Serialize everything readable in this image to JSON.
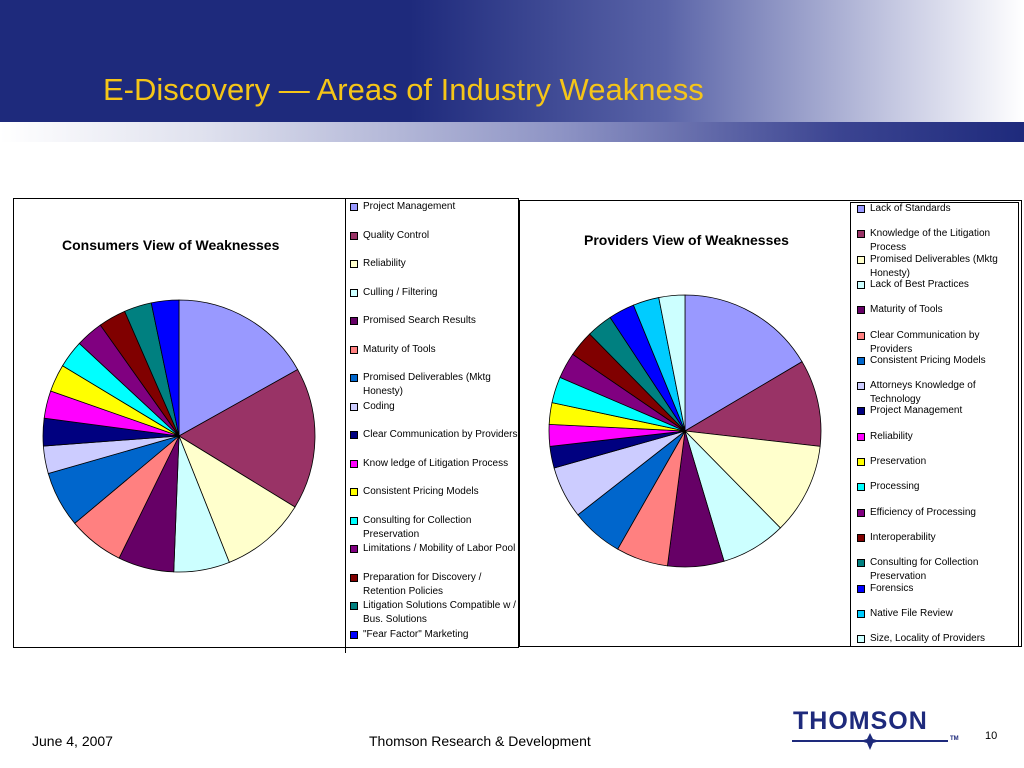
{
  "slide": {
    "title": "E-Discovery — Areas of Industry Weakness",
    "date": "June 4, 2007",
    "footer_center": "Thomson Research & Development",
    "page_number": "10",
    "logo_text": "THOMSON",
    "logo_tm": "TM"
  },
  "colors": {
    "title": "#f5c518",
    "header": "#1e2a7c"
  },
  "chart_data": [
    {
      "type": "pie",
      "title": "Consumers View of Weaknesses",
      "legend_position": "right",
      "start_angle": "12 o'clock, clockwise",
      "categories": [
        "Project Management",
        "Quality Control",
        "Reliability",
        "Culling / Filtering",
        "Promised Search Results",
        "Maturity of Tools",
        "Promised Deliverables (Mktg Honesty)",
        "Coding",
        "Clear Communication by Providers",
        "Know ledge of Litigation Process",
        "Consistent Pricing Models",
        "Consulting for Collection Preservation",
        "Limitations / Mobility of Labor Pool",
        "Preparation for Discovery / Retention Policies",
        "Litigation Solutions Compatible w / Bus. Solutions",
        "\"Fear Factor\" Marketing"
      ],
      "values": [
        16.5,
        16.5,
        10,
        6.5,
        6.5,
        6.5,
        6.5,
        3.2,
        3.2,
        3.2,
        3.2,
        3.2,
        3.2,
        3.2,
        3.2,
        3.2
      ],
      "colors": [
        "#9999ff",
        "#993366",
        "#ffffcc",
        "#ccffff",
        "#660066",
        "#ff8080",
        "#0066cc",
        "#ccccff",
        "#000080",
        "#ff00ff",
        "#ffff00",
        "#00ffff",
        "#800080",
        "#800000",
        "#008080",
        "#0000ff"
      ]
    },
    {
      "type": "pie",
      "title": "Providers View of Weaknesses",
      "legend_position": "right",
      "start_angle": "12 o'clock, clockwise",
      "categories": [
        "Lack of Standards",
        "Knowledge of the Litigation Process",
        "Promised Deliverables (Mktg Honesty)",
        "Lack of Best Practices",
        "Maturity of Tools",
        "Clear Communication by Providers",
        "Consistent Pricing Models",
        "Attorneys Knowledge of Technology",
        "Project Management",
        "Reliability",
        "Preservation",
        "Processing",
        "Efficiency of Processing",
        "Interoperability",
        "Consulting for Collection Preservation",
        "Forensics",
        "Native File Review",
        "Size, Locality of Providers"
      ],
      "values": [
        16,
        10,
        10.5,
        7.5,
        6.5,
        6,
        6,
        6,
        2.5,
        2.5,
        2.5,
        3,
        3,
        3,
        3,
        3,
        3,
        3
      ],
      "colors": [
        "#9999ff",
        "#993366",
        "#ffffcc",
        "#ccffff",
        "#660066",
        "#ff8080",
        "#0066cc",
        "#ccccff",
        "#000080",
        "#ff00ff",
        "#ffff00",
        "#00ffff",
        "#800080",
        "#800000",
        "#008080",
        "#0000ff",
        "#00ccff",
        "#ccffff"
      ]
    }
  ]
}
